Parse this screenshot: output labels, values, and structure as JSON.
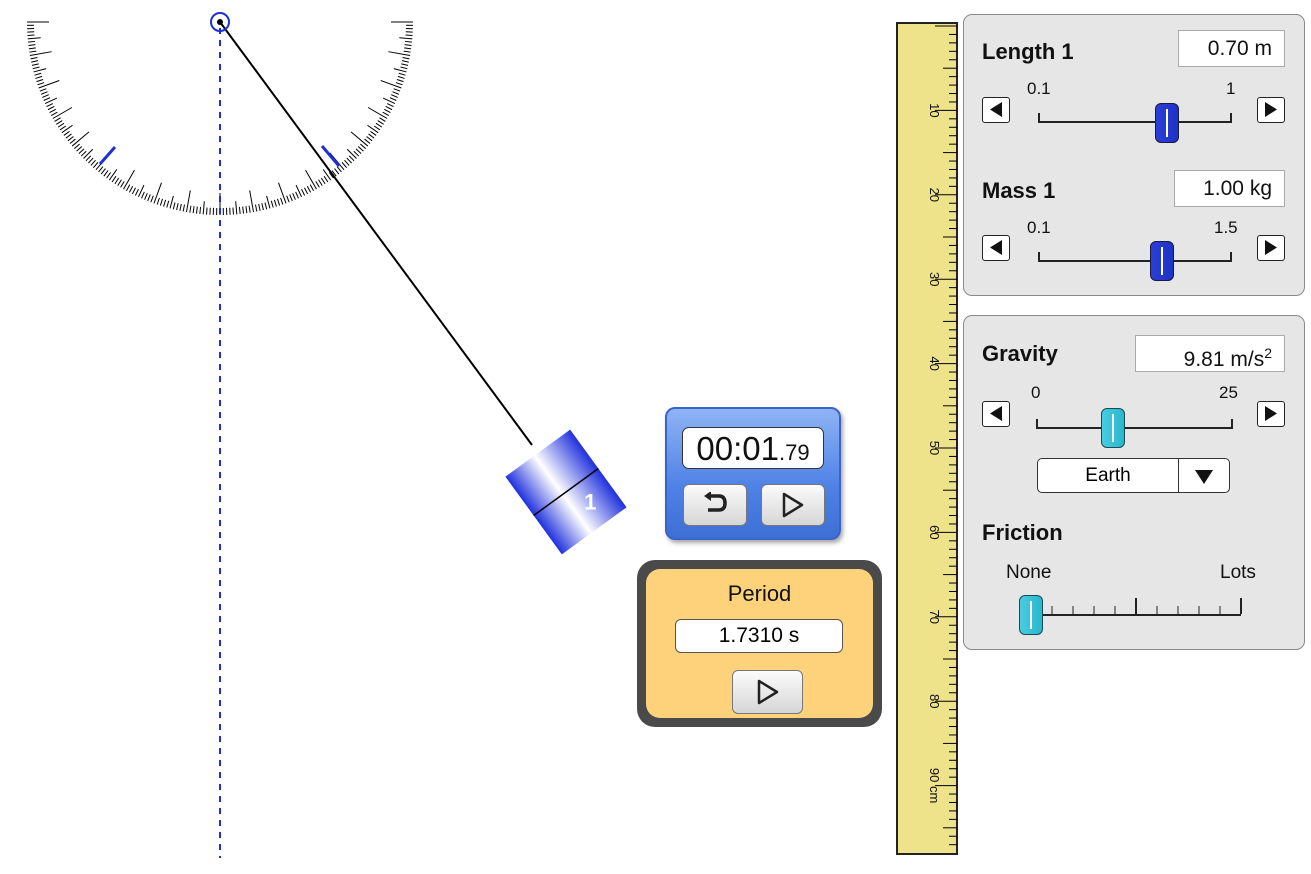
{
  "pendulum": {
    "mass_label": "1",
    "protractor_color": "#000000",
    "string_color": "#000000",
    "mass_color": "#2233dd",
    "vertical_guide_color": "#1e2fd6"
  },
  "ruler": {
    "unit": "cm",
    "labels": [
      "10",
      "20",
      "30",
      "40",
      "50",
      "60",
      "70",
      "80",
      "90 cm"
    ],
    "color": "#eee28a"
  },
  "stopwatch": {
    "time_main": "00:01",
    "time_fraction": ".79",
    "reset_icon": "reset-icon",
    "play_icon": "play-icon"
  },
  "period_timer": {
    "title": "Period",
    "value": "1.7310 s",
    "play_icon": "play-icon"
  },
  "controls": {
    "length": {
      "title": "Length 1",
      "value": "0.70 m",
      "min_label": "0.1",
      "max_label": "1",
      "fraction": 0.667
    },
    "mass": {
      "title": "Mass 1",
      "value": "1.00 kg",
      "min_label": "0.1",
      "max_label": "1.5",
      "fraction": 0.643
    },
    "gravity": {
      "title": "Gravity",
      "value": "9.81 m/s",
      "value_sup": "2",
      "min_label": "0",
      "max_label": "25",
      "fraction": 0.392,
      "planet": "Earth"
    },
    "friction": {
      "title": "Friction",
      "min_label": "None",
      "max_label": "Lots",
      "fraction": 0.0
    }
  }
}
